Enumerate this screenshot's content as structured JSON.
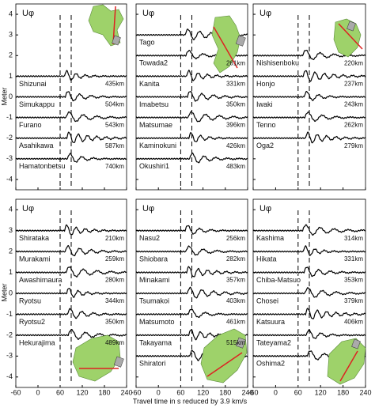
{
  "figure": {
    "y_label": "Meter",
    "x_label": "Travel time in s reduced by 3.9 km/s",
    "ylim": [
      -4.5,
      4.5
    ],
    "yticks": [
      -4,
      -3,
      -2,
      -1,
      0,
      1,
      2,
      3,
      4
    ],
    "xlim": [
      -60,
      240
    ],
    "xticks": [
      -60,
      0,
      60,
      120,
      180,
      240
    ],
    "dashed_lines": [
      60,
      90
    ],
    "panels": [
      {
        "title": "Uφ",
        "stations": [
          {
            "name": "Shizunai",
            "distance": "435km",
            "offset": 1
          },
          {
            "name": "Simukappu",
            "distance": "504km",
            "offset": 0
          },
          {
            "name": "Furano",
            "distance": "543km",
            "offset": -1
          },
          {
            "name": "Asahikawa",
            "distance": "587km",
            "offset": -2
          },
          {
            "name": "Hamatonbetsu",
            "distance": "740km",
            "offset": -3
          }
        ]
      },
      {
        "title": "Uφ",
        "stations": [
          {
            "name": "Tago",
            "offset": 3
          },
          {
            "name": "Towada2",
            "distance": "261km",
            "offset": 2
          },
          {
            "name": "Kanita",
            "distance": "331km",
            "offset": 1
          },
          {
            "name": "Imabetsu",
            "distance": "350km",
            "offset": 0
          },
          {
            "name": "Matsumae",
            "distance": "396km",
            "offset": -1
          },
          {
            "name": "Kaminokuni",
            "distance": "426km",
            "offset": -2
          },
          {
            "name": "Okushiri1",
            "distance": "483km",
            "offset": -3
          }
        ]
      },
      {
        "title": "Uφ",
        "stations": [
          {
            "name": "Nishisenboku",
            "distance": "220km",
            "offset": 2
          },
          {
            "name": "Honjo",
            "distance": "237km",
            "offset": 1
          },
          {
            "name": "Iwaki",
            "distance": "243km",
            "offset": 0
          },
          {
            "name": "Tenno",
            "distance": "262km",
            "offset": -1
          },
          {
            "name": "Oga2",
            "distance": "279km",
            "offset": -2
          }
        ]
      },
      {
        "title": "Uφ",
        "stations": [
          {
            "name": "Shirataka",
            "distance": "210km",
            "offset": 3
          },
          {
            "name": "Murakami",
            "distance": "259km",
            "offset": 2
          },
          {
            "name": "Awashimaura",
            "distance": "280km",
            "offset": 1
          },
          {
            "name": "Ryotsu",
            "distance": "344km",
            "offset": 0
          },
          {
            "name": "Ryotsu2",
            "distance": "350km",
            "offset": -1
          },
          {
            "name": "Hekurajima",
            "distance": "489km",
            "offset": -2
          }
        ]
      },
      {
        "title": "Uφ",
        "stations": [
          {
            "name": "Nasu2",
            "distance": "256km",
            "offset": 3
          },
          {
            "name": "Shiobara",
            "distance": "282km",
            "offset": 2
          },
          {
            "name": "Minakami",
            "distance": "357km",
            "offset": 1
          },
          {
            "name": "Tsumakoi",
            "distance": "403km",
            "offset": 0
          },
          {
            "name": "Matsumoto",
            "distance": "461km",
            "offset": -1
          },
          {
            "name": "Takayama",
            "distance": "515km",
            "offset": -2
          },
          {
            "name": "Shiratori",
            "offset": -3
          }
        ]
      },
      {
        "title": "Uφ",
        "stations": [
          {
            "name": "Kashima",
            "distance": "314km",
            "offset": 3
          },
          {
            "name": "Hikata",
            "distance": "331km",
            "offset": 2
          },
          {
            "name": "Chiba-Matsuo",
            "distance": "353km",
            "offset": 1
          },
          {
            "name": "Chosei",
            "distance": "379km",
            "offset": 0
          },
          {
            "name": "Katsuura",
            "distance": "406km",
            "offset": -1
          },
          {
            "name": "Tateyama2",
            "offset": -2
          },
          {
            "name": "Oshima2",
            "offset": -3
          }
        ]
      }
    ]
  }
}
